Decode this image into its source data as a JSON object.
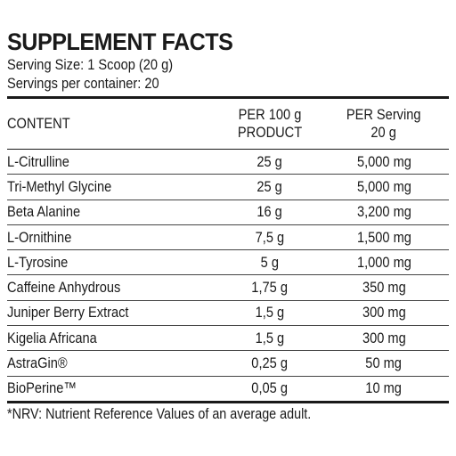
{
  "label": {
    "title": "SUPPLEMENT FACTS",
    "serving_size": "Serving Size: 1 Scoop (20 g)",
    "servings_per_container": "Servings per container: 20",
    "columns": {
      "content": "CONTENT",
      "per100_line1": "PER 100 g",
      "per100_line2": "PRODUCT",
      "perserving_line1": "PER Serving",
      "perserving_line2": "20 g"
    },
    "rows": [
      {
        "name": "L-Citrulline",
        "per100": "25 g",
        "perserving": "5,000 mg"
      },
      {
        "name": "Tri-Methyl Glycine",
        "per100": "25 g",
        "perserving": "5,000 mg"
      },
      {
        "name": "Beta Alanine",
        "per100": "16 g",
        "perserving": "3,200 mg"
      },
      {
        "name": "L-Ornithine",
        "per100": "7,5 g",
        "perserving": "1,500 mg"
      },
      {
        "name": "L-Tyrosine",
        "per100": "5 g",
        "perserving": "1,000 mg"
      },
      {
        "name": "Caffeine Anhydrous",
        "per100": "1,75 g",
        "perserving": "350 mg"
      },
      {
        "name": "Juniper Berry Extract",
        "per100": "1,5 g",
        "perserving": "300 mg"
      },
      {
        "name": "Kigelia Africana",
        "per100": "1,5 g",
        "perserving": "300 mg"
      },
      {
        "name": "AstraGin®",
        "per100": "0,25 g",
        "perserving": "50 mg"
      },
      {
        "name": "BioPerine™",
        "per100": "0,05 g",
        "perserving": "10 mg"
      }
    ],
    "footnote": "*NRV: Nutrient Reference Values of an average adult."
  }
}
